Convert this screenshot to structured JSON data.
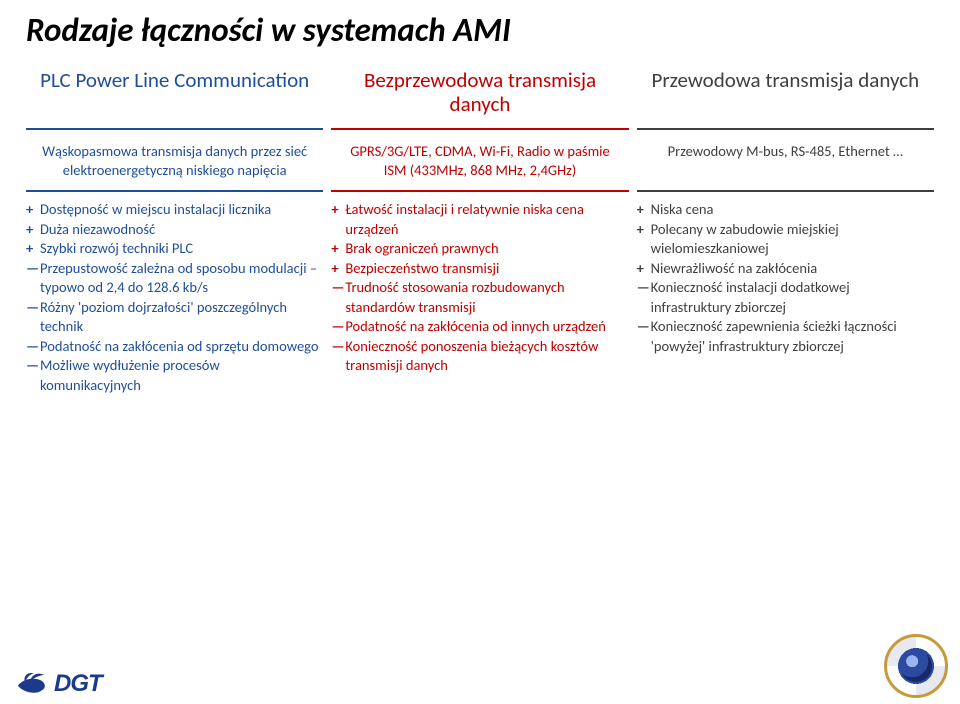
{
  "title": {
    "text": "Rodzaje łączności w systemach AMI",
    "color": "#000000",
    "fontsize": 33,
    "fontweight": 700
  },
  "columns": [
    {
      "color": "#1f4e99",
      "background": "#ffffff",
      "head": "PLC Power Line Communication",
      "subhead": "Wąskopasmowa transmisja danych przez sieć elektroenergetyczną niskiego napięcia",
      "items": [
        {
          "sign": "+",
          "text": "Dostępność w miejscu instalacji licznika"
        },
        {
          "sign": "+",
          "text": "Duża niezawodność"
        },
        {
          "sign": "+",
          "text": "Szybki rozwój techniki PLC"
        },
        {
          "sign": "-",
          "text": "Przepustowość zależna od sposobu modulacji – typowo od 2,4 do 128.6 kb/s"
        },
        {
          "sign": "-",
          "text": "Różny 'poziom dojrzałości' poszczególnych technik"
        },
        {
          "sign": "-",
          "text": "Podatność na zakłócenia od sprzętu domowego"
        },
        {
          "sign": "-",
          "text": "Możliwe wydłużenie procesów komunikacyjnych"
        }
      ]
    },
    {
      "color": "#c00000",
      "background": "#ffffff",
      "head": "Bezprzewodowa transmisja danych",
      "subhead": "GPRS/3G/LTE, CDMA, Wi-Fi, Radio w paśmie ISM (433MHz, 868 MHz, 2,4GHz)",
      "items": [
        {
          "sign": "+",
          "text": "Łatwość instalacji i relatywnie niska cena urządzeń"
        },
        {
          "sign": "+",
          "text": "Brak ograniczeń prawnych"
        },
        {
          "sign": "+",
          "text": "Bezpieczeństwo transmisji"
        },
        {
          "sign": "-",
          "text": "Trudność stosowania rozbudowanych standardów transmisji"
        },
        {
          "sign": "-",
          "text": "Podatność na zakłócenia od innych urządzeń"
        },
        {
          "sign": "-",
          "text": "Konieczność ponoszenia bieżących kosztów transmisji danych"
        }
      ]
    },
    {
      "color": "#3f3f3f",
      "background": "#ffffff",
      "head": "Przewodowa transmisja danych",
      "subhead": "Przewodowy M-bus, RS-485, Ethernet …",
      "items": [
        {
          "sign": "+",
          "text": "Niska cena"
        },
        {
          "sign": "+",
          "text": "Polecany w zabudowie miejskiej wielomieszkaniowej"
        },
        {
          "sign": "+",
          "text": "Niewrażliwość na zakłócenia"
        },
        {
          "sign": "-",
          "text": "Konieczność instalacji dodatkowej infrastruktury zbiorczej"
        },
        {
          "sign": "-",
          "text": "Konieczność zapewnienia ścieżki łączności 'powyżej' infrastruktury zbiorczej"
        }
      ]
    }
  ],
  "logos": {
    "dgt": "DGT",
    "dgt_color": "#1b3a8a",
    "bird_color": "#1b3a8a"
  }
}
